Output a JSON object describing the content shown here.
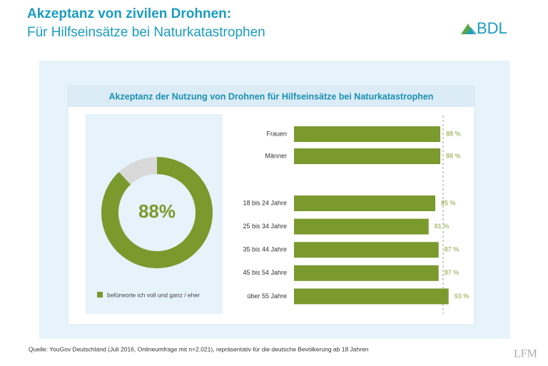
{
  "header": {
    "title": "Akzeptanz von zivilen Drohnen:",
    "subtitle": "Für Hilfseinsätze bei Naturkatastrophen",
    "logo": "BDL"
  },
  "panel_title": "Akzeptanz der Nutzung von Drohnen für Hilfseinsätze bei Naturkatastrophen",
  "chart_data": [
    {
      "type": "donut",
      "series": [
        {
          "name": "befürworte ich voll und ganz / eher",
          "color": "#7a9a2e",
          "values": [
            88
          ],
          "value_labels": [
            "88%"
          ]
        }
      ]
    },
    {
      "type": "hbar",
      "categories": [
        "Frauen",
        "Männer",
        "18 bis 24 Jahre",
        "25 bis 34 Jahre",
        "35 bis 44 Jahre",
        "45 bis 54 Jahre",
        "über 55 Jahre"
      ],
      "values": [
        88,
        88,
        85,
        81,
        87,
        87,
        93
      ],
      "value_labels": [
        "88 %",
        "88 %",
        "85 %",
        "81 %",
        "87 %",
        "87 %",
        "93 %"
      ],
      "color": "#7a9a2e",
      "xlim": [
        0,
        100
      ]
    }
  ],
  "source": "Quelle: YouGov Deutschland (Juli 2016, Onlineumfrage mit n=2.021), repräsentativ für die deutsche Bevölkerung ab 18 Jahren",
  "watermark": "LFM"
}
